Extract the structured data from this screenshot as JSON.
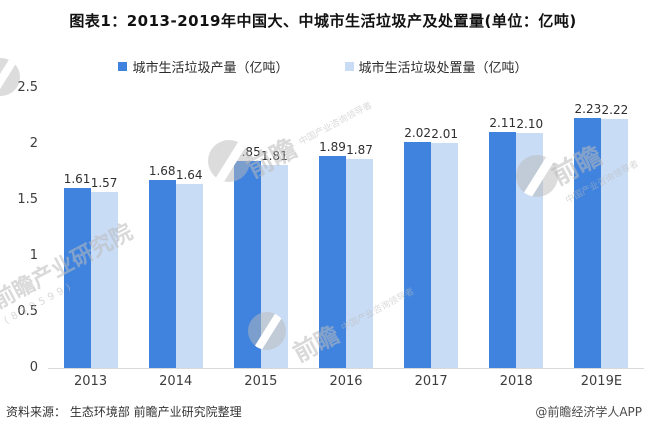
{
  "title": "图表1：2013-2019年中国大、中城市生活垃圾产及处置量(单位：亿吨)",
  "chart_data": {
    "type": "bar",
    "title": "图表1：2013-2019年中国大、中城市生活垃圾产及处置量(单位：亿吨)",
    "categories": [
      "2013",
      "2014",
      "2015",
      "2016",
      "2017",
      "2018",
      "2019E"
    ],
    "series": [
      {
        "name": "城市生活垃圾产量（亿吨）",
        "color": "#3F83DF",
        "values": [
          1.61,
          1.68,
          1.85,
          1.89,
          2.02,
          2.11,
          2.23
        ]
      },
      {
        "name": "城市生活垃圾处置量（亿吨）",
        "color": "#C9DCF5",
        "values": [
          1.57,
          1.64,
          1.81,
          1.87,
          2.01,
          2.1,
          2.22
        ]
      }
    ],
    "xlabel": "",
    "ylabel": "",
    "ylim": [
      0,
      2.5
    ],
    "yticks": [
      0,
      0.5,
      1,
      1.5,
      2,
      2.5
    ],
    "ytick_labels": [
      "0",
      "0.5",
      "1",
      "1.5",
      "2",
      "2.5"
    ],
    "value_label_decimals": 2,
    "grid": false,
    "legend_position": "top"
  },
  "footer": {
    "source": "资料来源：  生态环境部 前瞻产业研究院整理",
    "credit": "@前瞻经济学人APP"
  },
  "watermark": {
    "brand": "前瞻产业研究院",
    "logo_text": "前瞻",
    "tagline": "中国产业咨询领导者",
    "number": "(839599)"
  }
}
